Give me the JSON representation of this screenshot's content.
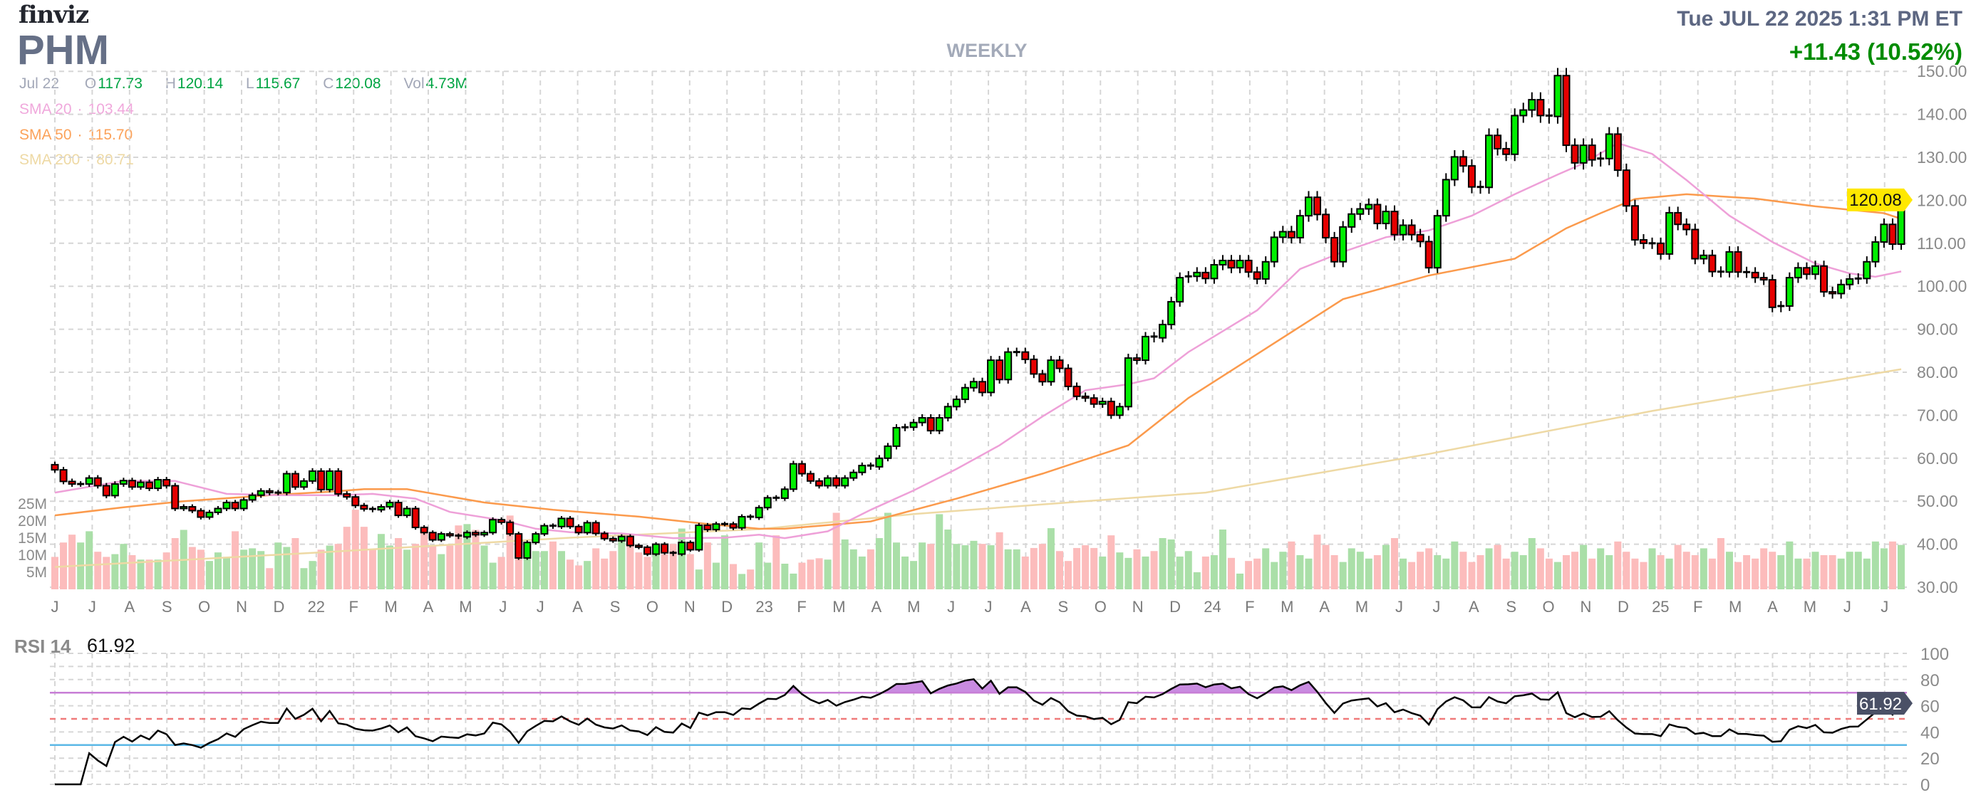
{
  "header": {
    "logo": "finviz",
    "ticker": "PHM",
    "timeframe": "WEEKLY",
    "datetime": "Tue JUL 22 2025 1:31 PM ET",
    "change": "+11.43 (10.52%)"
  },
  "ohlc": {
    "date": "Jul 22",
    "open_label": "O",
    "open": "117.73",
    "high_label": "H",
    "high": "120.14",
    "low_label": "L",
    "low": "115.67",
    "close_label": "C",
    "close": "120.08",
    "vol_label": "Vol",
    "vol": "4.73M"
  },
  "indicators": {
    "sma20": {
      "label": "SMA 20",
      "value": "103.44",
      "color": "#eea0d8"
    },
    "sma50": {
      "label": "SMA 50",
      "value": "115.70",
      "color": "#fb9a4c"
    },
    "sma200": {
      "label": "SMA 200",
      "value": "80.71",
      "color": "#eed9a4"
    },
    "sep": "·"
  },
  "rsi": {
    "label": "RSI 14",
    "value": "61.92",
    "period": 14,
    "overbought": 70,
    "mid": 50,
    "oversold": 30,
    "axis_labels": [
      "100",
      "80",
      "60",
      "40",
      "20",
      "0"
    ]
  },
  "colors": {
    "up": "#00ee00",
    "down": "#e60000",
    "vol_up": "#aadfa8",
    "vol_down": "#fcbcbc",
    "price_tag": "#ffe800",
    "rsi_tag": "#4a5066"
  },
  "chart_data": {
    "type": "candlestick",
    "title": "PHM WEEKLY",
    "ylim": [
      30,
      150
    ],
    "y_ticks": [
      "150.00",
      "140.00",
      "130.00",
      "120.00",
      "110.00",
      "100.00",
      "90.00",
      "80.00",
      "70.00",
      "60.00",
      "50.00",
      "40.00",
      "30.00"
    ],
    "volume_ticks": [
      "25M",
      "20M",
      "15M",
      "10M",
      "5M"
    ],
    "last_price": "120.08",
    "month_labels": [
      "J",
      "J",
      "A",
      "S",
      "O",
      "N",
      "D",
      "22",
      "F",
      "M",
      "A",
      "M",
      "J",
      "J",
      "A",
      "S",
      "O",
      "N",
      "D",
      "23",
      "F",
      "M",
      "A",
      "M",
      "J",
      "J",
      "A",
      "S",
      "O",
      "N",
      "D",
      "24",
      "F",
      "M",
      "A",
      "M",
      "J",
      "J",
      "A",
      "S",
      "O",
      "N",
      "D",
      "25",
      "F",
      "M",
      "A",
      "M",
      "J",
      "J"
    ],
    "first_open": 58.5,
    "close": [
      57.3,
      54.6,
      54,
      54,
      55.4,
      53.6,
      51.3,
      54,
      54.8,
      53.3,
      54.4,
      53,
      55,
      53.6,
      48.3,
      48.7,
      47.8,
      46.3,
      47.4,
      48.3,
      49.7,
      48.3,
      50.3,
      51.4,
      52.4,
      52,
      52,
      56.4,
      53.3,
      54.7,
      57,
      52.7,
      57,
      51.7,
      51,
      49,
      48.2,
      48,
      48.7,
      49.7,
      46.7,
      48.3,
      43.9,
      42.7,
      41,
      42.4,
      42,
      41.7,
      42.7,
      42.2,
      42.7,
      45.7,
      45.1,
      42.4,
      36.8,
      40.4,
      42.4,
      44.3,
      44.1,
      46,
      44.1,
      42.7,
      45,
      42.5,
      41.3,
      40.8,
      41.8,
      39.7,
      39.3,
      37.7,
      40,
      38,
      37.7,
      40.4,
      38.7,
      44.4,
      43.4,
      44.7,
      44.7,
      43.8,
      46.4,
      46.2,
      48.5,
      50.8,
      50.7,
      52.8,
      58.7,
      56.4,
      54.7,
      53.6,
      55.4,
      53.6,
      55.4,
      56.7,
      58.3,
      58,
      60,
      62.8,
      67.1,
      67.2,
      68.3,
      69.4,
      66.4,
      69.4,
      72,
      73.7,
      76.4,
      77.8,
      75.3,
      82.8,
      78.3,
      84.7,
      84.7,
      83,
      79.6,
      77.8,
      82.8,
      80.9,
      76.7,
      74.4,
      74,
      72.6,
      73.2,
      70,
      72,
      83.3,
      82.8,
      88.3,
      88,
      91.1,
      96.4,
      102,
      102.3,
      103.2,
      101.8,
      105,
      106,
      104.3,
      106,
      103.3,
      101.7,
      105.7,
      111.4,
      112.7,
      111.3,
      116.4,
      120.7,
      116.7,
      111.3,
      105.7,
      113.8,
      116.8,
      118,
      119,
      114.6,
      117.4,
      112,
      114.2,
      112,
      110.4,
      104.3,
      116.4,
      124.8,
      130.1,
      128,
      123.1,
      123,
      135.1,
      132,
      130.7,
      139.7,
      141,
      143.4,
      139.7,
      139.5,
      149,
      132.8,
      128.7,
      132.8,
      129.4,
      129.7,
      135.4,
      127,
      118.7,
      110.8,
      110,
      110,
      107.5,
      117.1,
      114.4,
      113.2,
      106.4,
      107.2,
      103.4,
      103.3,
      108,
      103.3,
      103.2,
      102,
      101.5,
      95.1,
      95.4,
      102,
      104.3,
      102.8,
      104.7,
      98.7,
      98.3,
      100.4,
      101.7,
      101.8,
      105.7,
      110.3,
      114.4,
      109.8,
      120.08
    ],
    "volume_m": [
      9.5,
      13.7,
      16,
      13.7,
      17,
      11,
      9.5,
      10.3,
      13.3,
      10,
      8.7,
      8.7,
      8.7,
      10.8,
      15,
      17.4,
      12.4,
      11.6,
      8.3,
      10.8,
      9.5,
      17,
      11.6,
      12,
      11.2,
      6.2,
      13.7,
      12.4,
      15,
      6.2,
      8.3,
      11.6,
      12.8,
      13.3,
      18.3,
      23.3,
      18.3,
      11.6,
      16.2,
      12.8,
      15,
      11.6,
      13.3,
      17,
      12.8,
      10.3,
      12.8,
      18.7,
      19.1,
      17.4,
      12.8,
      7.8,
      9.5,
      21.6,
      11.6,
      10.3,
      11.2,
      11.2,
      14,
      11.2,
      8.7,
      7,
      8.3,
      12,
      9,
      11.2,
      15.3,
      13.7,
      10.8,
      9.5,
      11.6,
      10.3,
      13.3,
      17.8,
      10.3,
      5.8,
      13.7,
      7.8,
      15.8,
      7.4,
      4.5,
      5.8,
      13.7,
      7.8,
      15.8,
      7.5,
      4.6,
      7.8,
      8.7,
      9.1,
      8.7,
      22.4,
      14.6,
      11.7,
      9.6,
      11.7,
      15,
      22.4,
      13.7,
      9.6,
      8.3,
      13.7,
      13.3,
      22,
      17.5,
      13.3,
      12.9,
      14.2,
      13.3,
      12.9,
      16.7,
      11.7,
      11.7,
      9.6,
      12.1,
      13.3,
      17.9,
      11.2,
      8.3,
      12.1,
      12.9,
      12.1,
      9.6,
      15.8,
      10.8,
      9.2,
      11.7,
      9.6,
      11.2,
      15,
      14.6,
      9.6,
      11.2,
      5,
      9.6,
      10,
      17.5,
      9.2,
      4.6,
      8.3,
      9,
      12,
      8,
      11,
      14,
      10,
      9,
      16,
      13,
      10,
      8,
      12,
      11,
      9,
      10,
      13,
      15,
      9,
      8,
      11,
      12,
      10,
      9,
      14,
      11,
      8,
      10,
      12,
      13,
      9,
      11,
      10,
      15,
      12,
      9,
      8,
      10,
      11,
      13,
      9,
      12,
      10,
      14,
      11,
      9,
      8,
      12,
      10,
      9,
      13,
      11,
      10,
      12,
      9,
      15,
      11,
      8,
      10,
      9,
      12,
      11,
      10,
      14,
      9,
      9,
      11,
      10,
      10,
      9,
      11,
      11,
      9,
      14,
      12,
      14,
      13,
      4.73
    ],
    "sma20_points": [
      [
        0,
        52
      ],
      [
        8,
        54.7
      ],
      [
        14,
        54.7
      ],
      [
        20,
        51.7
      ],
      [
        26,
        51.4
      ],
      [
        33,
        51.4
      ],
      [
        37,
        51.7
      ],
      [
        42,
        50.6
      ],
      [
        46,
        47.5
      ],
      [
        52,
        45.6
      ],
      [
        56,
        43.6
      ],
      [
        60,
        42.8
      ],
      [
        66,
        42.5
      ],
      [
        72,
        41.4
      ],
      [
        78,
        41.5
      ],
      [
        82,
        42.2
      ],
      [
        85,
        41.4
      ],
      [
        90,
        43
      ],
      [
        95,
        48
      ],
      [
        100,
        52.5
      ],
      [
        105,
        57.5
      ],
      [
        110,
        63
      ],
      [
        115,
        69.7
      ],
      [
        120,
        75.8
      ],
      [
        125,
        77.2
      ],
      [
        128,
        78.6
      ],
      [
        132,
        84.7
      ],
      [
        140,
        94.4
      ],
      [
        145,
        104
      ],
      [
        150,
        108
      ],
      [
        155,
        111.4
      ],
      [
        160,
        113
      ],
      [
        165,
        116.4
      ],
      [
        170,
        121.4
      ],
      [
        175,
        126
      ],
      [
        178,
        128.6
      ],
      [
        182,
        133.3
      ],
      [
        186,
        130.8
      ],
      [
        190,
        124.7
      ],
      [
        195,
        116.4
      ],
      [
        200,
        110.3
      ],
      [
        205,
        105.3
      ],
      [
        209,
        103
      ],
      [
        212,
        102.2
      ],
      [
        215,
        103.44
      ]
    ],
    "sma50_points": [
      [
        0,
        46.7
      ],
      [
        8,
        48.6
      ],
      [
        15,
        50
      ],
      [
        25,
        51.4
      ],
      [
        32,
        52.2
      ],
      [
        36,
        52.8
      ],
      [
        41,
        52.8
      ],
      [
        50,
        49.7
      ],
      [
        58,
        48
      ],
      [
        68,
        46.4
      ],
      [
        76,
        44.7
      ],
      [
        82,
        43.6
      ],
      [
        85,
        43.6
      ],
      [
        95,
        45.3
      ],
      [
        105,
        50.6
      ],
      [
        115,
        56.4
      ],
      [
        125,
        63
      ],
      [
        132,
        74
      ],
      [
        150,
        97
      ],
      [
        160,
        102.5
      ],
      [
        170,
        106.4
      ],
      [
        176,
        113.5
      ],
      [
        180,
        117
      ],
      [
        184,
        120.3
      ],
      [
        190,
        121.4
      ],
      [
        198,
        120.4
      ],
      [
        205,
        118.6
      ],
      [
        213,
        117
      ],
      [
        215,
        115.7
      ]
    ],
    "sma200_points": [
      [
        0,
        34.7
      ],
      [
        30,
        38
      ],
      [
        60,
        41.5
      ],
      [
        82,
        43.5
      ],
      [
        100,
        47
      ],
      [
        120,
        50
      ],
      [
        134,
        52
      ],
      [
        160,
        61
      ],
      [
        186,
        71
      ],
      [
        215,
        80.71
      ]
    ]
  }
}
